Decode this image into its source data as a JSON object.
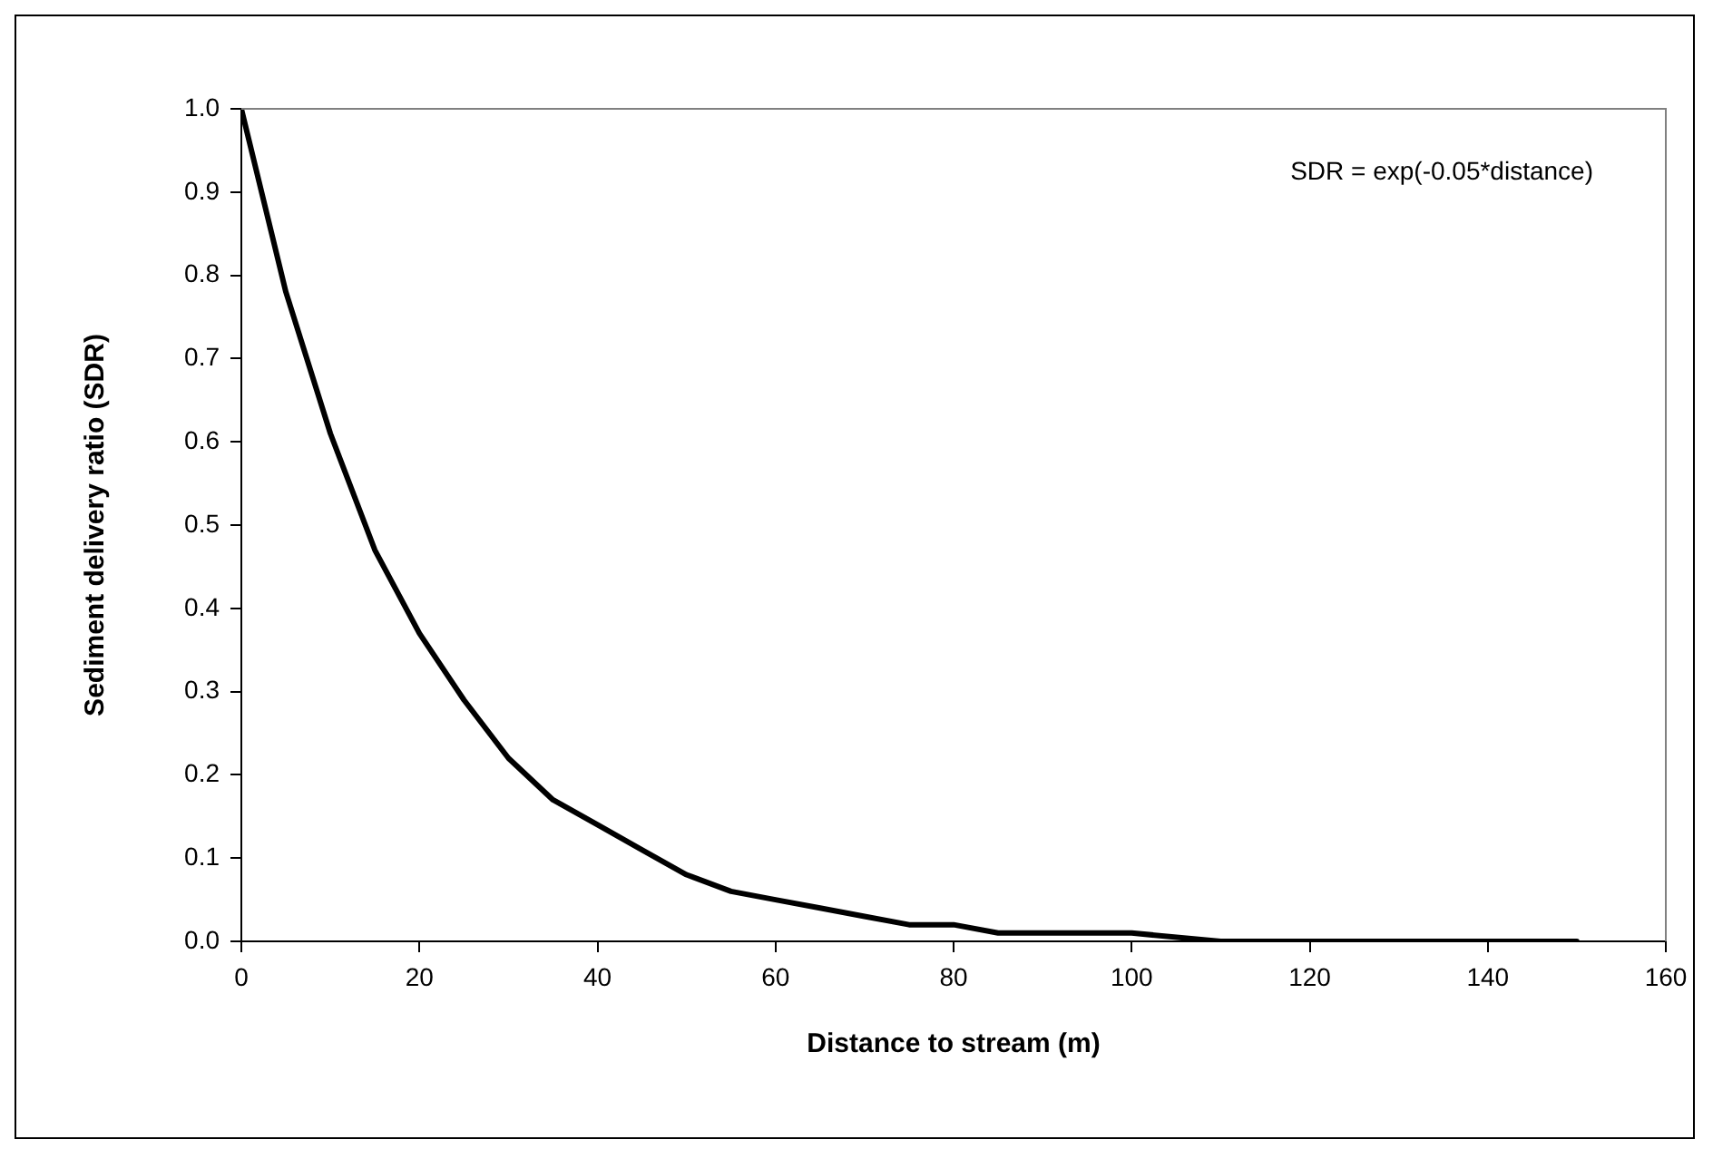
{
  "chart_data": {
    "type": "line",
    "xlabel": "Distance to stream (m)",
    "ylabel": "Sediment delivery ratio (SDR)",
    "annotations": [
      "SDR = exp(-0.05*distance)"
    ],
    "x": [
      0,
      5,
      10,
      15,
      20,
      25,
      30,
      35,
      40,
      45,
      50,
      55,
      60,
      65,
      70,
      75,
      80,
      85,
      90,
      95,
      100,
      110,
      120,
      130,
      140,
      150
    ],
    "series": [
      {
        "color": "#000000",
        "values": [
          1.0,
          0.78,
          0.61,
          0.47,
          0.37,
          0.29,
          0.22,
          0.17,
          0.14,
          0.11,
          0.08,
          0.06,
          0.05,
          0.04,
          0.03,
          0.02,
          0.02,
          0.01,
          0.01,
          0.01,
          0.01,
          0.0,
          0.0,
          0.0,
          0.0,
          0.0
        ]
      }
    ],
    "xlim": [
      0,
      160
    ],
    "xticks": [
      0,
      20,
      40,
      60,
      80,
      100,
      120,
      140,
      160
    ],
    "ylim": [
      0,
      1
    ],
    "yticks": [
      {
        "value": 0,
        "label": "0.0"
      },
      {
        "value": 0.1,
        "label": "0.1"
      },
      {
        "value": 0.2,
        "label": "0.2"
      },
      {
        "value": 0.3,
        "label": "0.3"
      },
      {
        "value": 0.4,
        "label": "0.4"
      },
      {
        "value": 0.5,
        "label": "0.5"
      },
      {
        "value": 0.6,
        "label": "0.6"
      },
      {
        "value": 0.7,
        "label": "0.7"
      },
      {
        "value": 0.8,
        "label": "0.8"
      },
      {
        "value": 0.9,
        "label": "0.9"
      },
      {
        "value": 1,
        "label": "1.0"
      }
    ],
    "marker": "none",
    "line_style": "solid",
    "legend": false
  }
}
